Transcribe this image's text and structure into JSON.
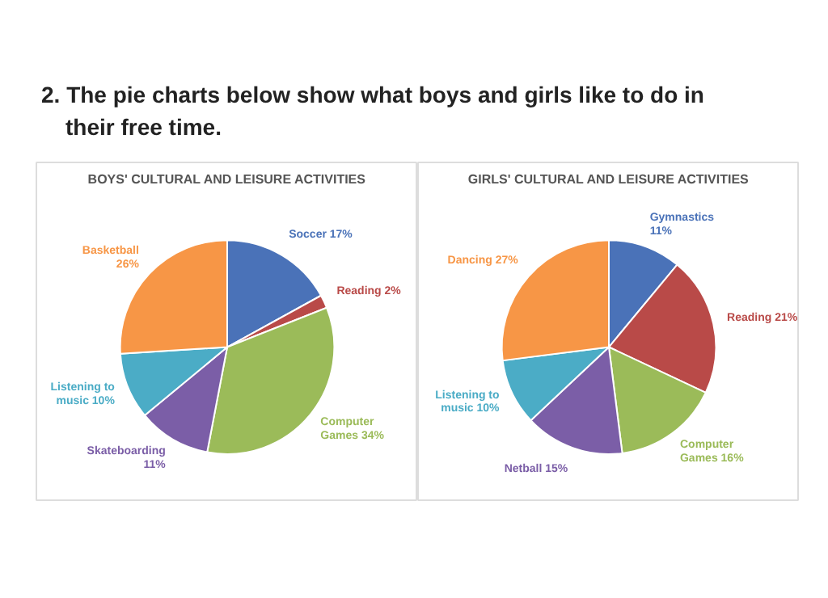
{
  "chart_data": [
    {
      "type": "pie",
      "title": "BOYS' CULTURAL AND LEISURE ACTIVITIES",
      "annotations": [
        "2. The pie charts below show what boys and girls like to do in their free time."
      ],
      "categories": [
        "Soccer",
        "Reading",
        "Computer Games",
        "Skateboarding",
        "Listening to music",
        "Basketball"
      ],
      "values": [
        17,
        2,
        34,
        11,
        10,
        26
      ],
      "value_labels": [
        "17%",
        "2%",
        "34%",
        "11%",
        "10%",
        "26%"
      ],
      "colors": [
        "#4a72b8",
        "#b94a48",
        "#9bbb59",
        "#7b5ea7",
        "#4bacc6",
        "#f79646"
      ]
    },
    {
      "type": "pie",
      "title": "GIRLS' CULTURAL AND LEISURE ACTIVITIES",
      "categories": [
        "Gymnastics",
        "Reading",
        "Computer Games",
        "Netball",
        "Listening to music",
        "Dancing"
      ],
      "values": [
        11,
        21,
        16,
        15,
        10,
        27
      ],
      "value_labels": [
        "11%",
        "21%",
        "16%",
        "15%",
        "10%",
        "27%"
      ],
      "colors": [
        "#4a72b8",
        "#b94a48",
        "#9bbb59",
        "#7b5ea7",
        "#4bacc6",
        "#f79646"
      ]
    }
  ]
}
